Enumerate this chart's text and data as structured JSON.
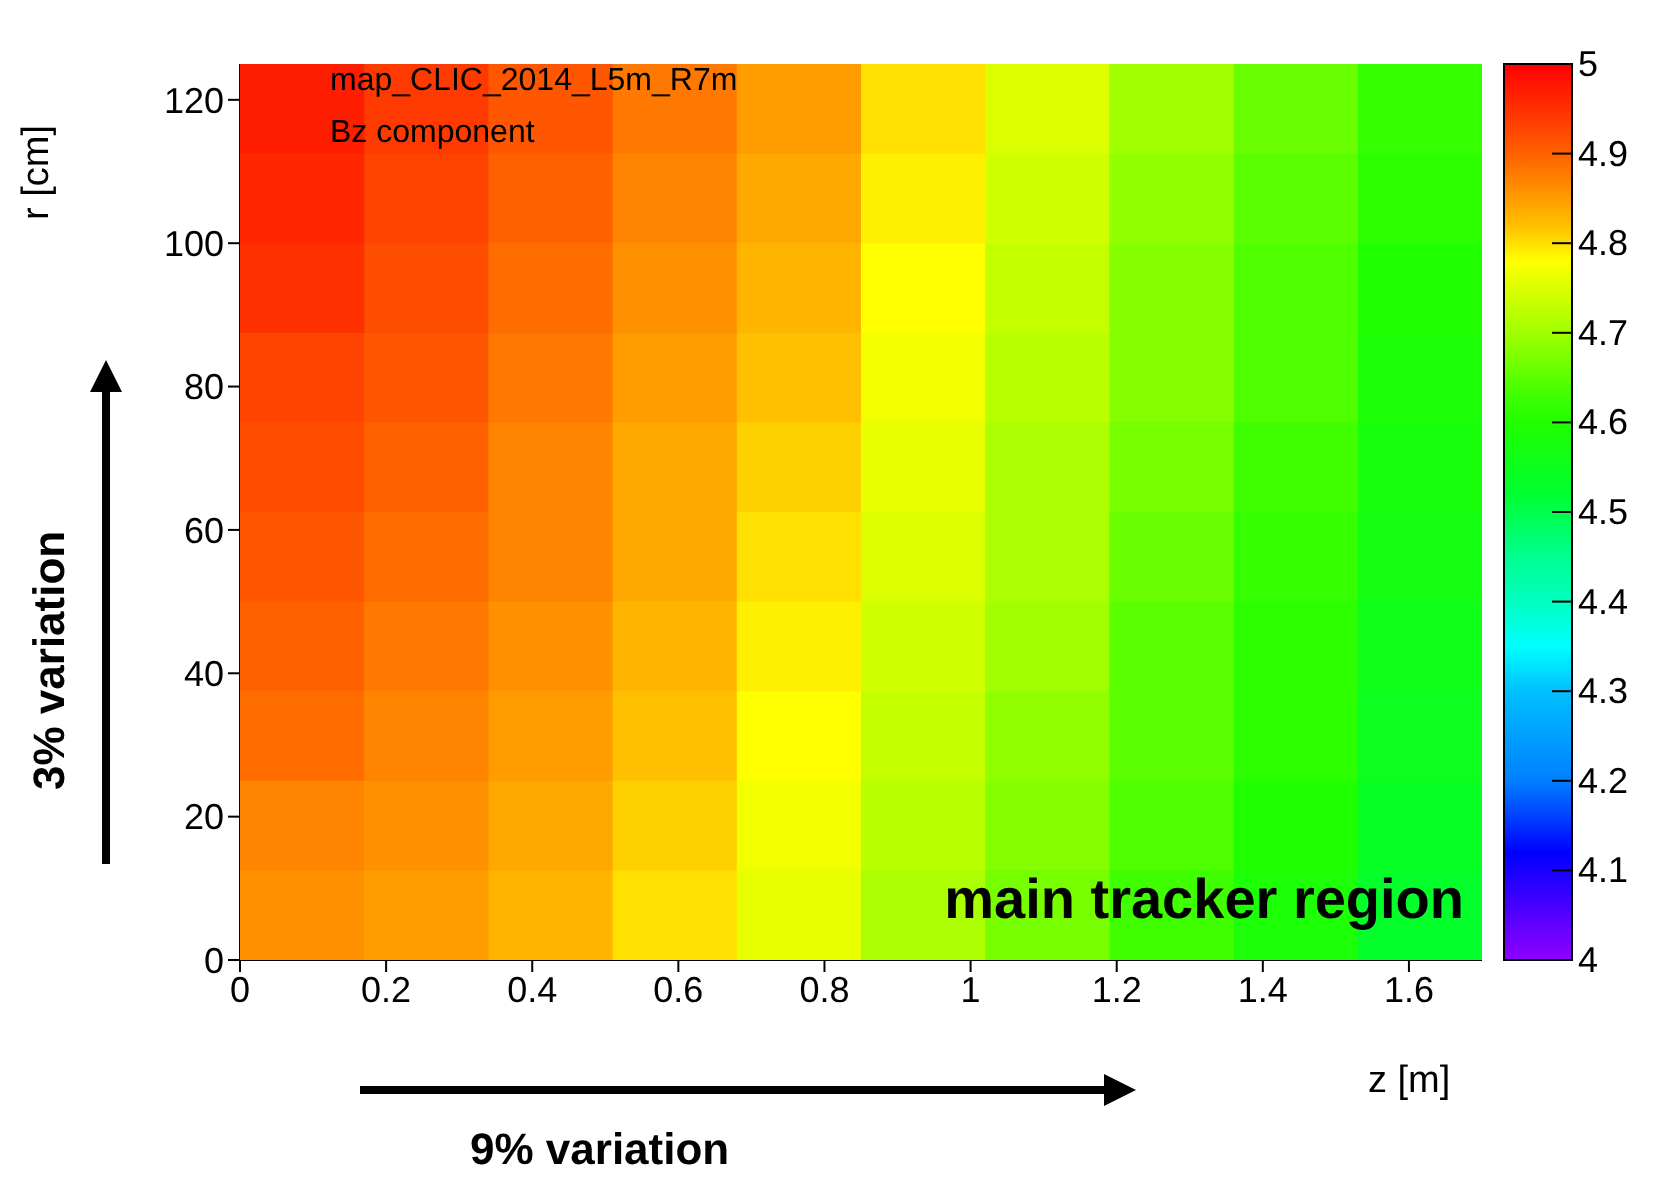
{
  "chart_data": {
    "type": "heatmap",
    "xlabel": "z [m]",
    "ylabel": "r [cm]",
    "xlim": [
      0,
      1.7
    ],
    "xticks": [
      0,
      0.2,
      0.4,
      0.6,
      0.8,
      1,
      1.2,
      1.4,
      1.6
    ],
    "ylim": [
      0,
      125
    ],
    "yticks": [
      0,
      20,
      40,
      60,
      80,
      100,
      120
    ],
    "clim": [
      4,
      5
    ],
    "cticks": [
      4,
      4.1,
      4.2,
      4.3,
      4.4,
      4.5,
      4.6,
      4.7,
      4.8,
      4.9,
      5
    ],
    "cells": [
      [
        4.97,
        4.94,
        4.91,
        4.88,
        4.85,
        4.8,
        4.75,
        4.7,
        4.66,
        4.62
      ],
      [
        4.96,
        4.93,
        4.9,
        4.87,
        4.84,
        4.79,
        4.74,
        4.69,
        4.65,
        4.61
      ],
      [
        4.95,
        4.92,
        4.89,
        4.86,
        4.83,
        4.78,
        4.73,
        4.68,
        4.64,
        4.6
      ],
      [
        4.93,
        4.91,
        4.88,
        4.85,
        4.82,
        4.77,
        4.72,
        4.68,
        4.64,
        4.59
      ],
      [
        4.92,
        4.9,
        4.87,
        4.84,
        4.81,
        4.76,
        4.71,
        4.67,
        4.63,
        4.58
      ],
      [
        4.91,
        4.89,
        4.87,
        4.84,
        4.8,
        4.75,
        4.71,
        4.66,
        4.62,
        4.57
      ],
      [
        4.9,
        4.88,
        4.86,
        4.83,
        4.79,
        4.74,
        4.7,
        4.65,
        4.61,
        4.56
      ],
      [
        4.89,
        4.87,
        4.85,
        4.82,
        4.78,
        4.73,
        4.69,
        4.65,
        4.61,
        4.55
      ],
      [
        4.87,
        4.86,
        4.84,
        4.81,
        4.77,
        4.72,
        4.68,
        4.64,
        4.6,
        4.54
      ],
      [
        4.86,
        4.85,
        4.83,
        4.8,
        4.76,
        4.71,
        4.67,
        4.63,
        4.59,
        4.53
      ]
    ],
    "annotations": [
      "map_CLIC_2014_L5m_R7m",
      "Bz component",
      "main tracker region",
      "3% variation",
      "9% variation"
    ]
  }
}
